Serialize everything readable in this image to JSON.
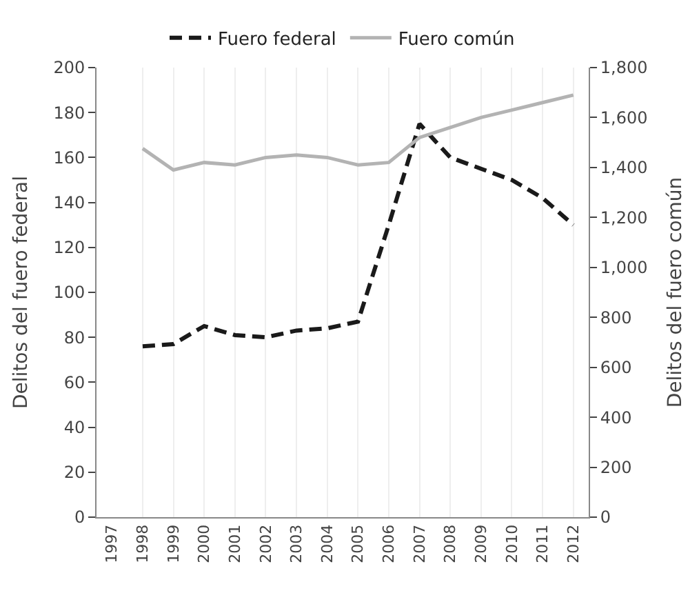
{
  "chart_data": {
    "type": "line",
    "ylabel": "Delitos del fuero federal",
    "y2label": "Delitos del fuero común",
    "categories": [
      "1997",
      "1998",
      "1999",
      "2000",
      "2001",
      "2002",
      "2003",
      "2004",
      "2005",
      "2006",
      "2007",
      "2008",
      "2009",
      "2010",
      "2011",
      "2012"
    ],
    "series": [
      {
        "name": "Fuero federal",
        "color": "#1a1a1a",
        "line_style": "dashed",
        "values": [
          null,
          76,
          77,
          85,
          81,
          80,
          83,
          84,
          87,
          130,
          175,
          160,
          155,
          150,
          142,
          130
        ]
      },
      {
        "name": "Fuero común",
        "color": "#b3b3b3",
        "line_style": "solid",
        "axis": "y2",
        "values": [
          null,
          1476,
          1390,
          1420,
          1410,
          1440,
          1450,
          1440,
          1410,
          1420,
          1520,
          1560,
          1600,
          1630,
          1660,
          1690
        ]
      }
    ],
    "ylim": [
      0,
      200
    ],
    "yticks": [
      0,
      20,
      40,
      60,
      80,
      100,
      120,
      140,
      160,
      180,
      200
    ],
    "y2lim": [
      0,
      1800
    ],
    "y2ticks": [
      0,
      200,
      400,
      600,
      800,
      {
        "value": 1000,
        "label": "1,000"
      },
      {
        "value": 1200,
        "label": "1,200"
      },
      {
        "value": 1400,
        "label": "1,400"
      },
      {
        "value": 1600,
        "label": "1,600"
      },
      {
        "value": 1800,
        "label": "1,800"
      }
    ],
    "grid": "x",
    "legend": "top",
    "marker": "none"
  }
}
